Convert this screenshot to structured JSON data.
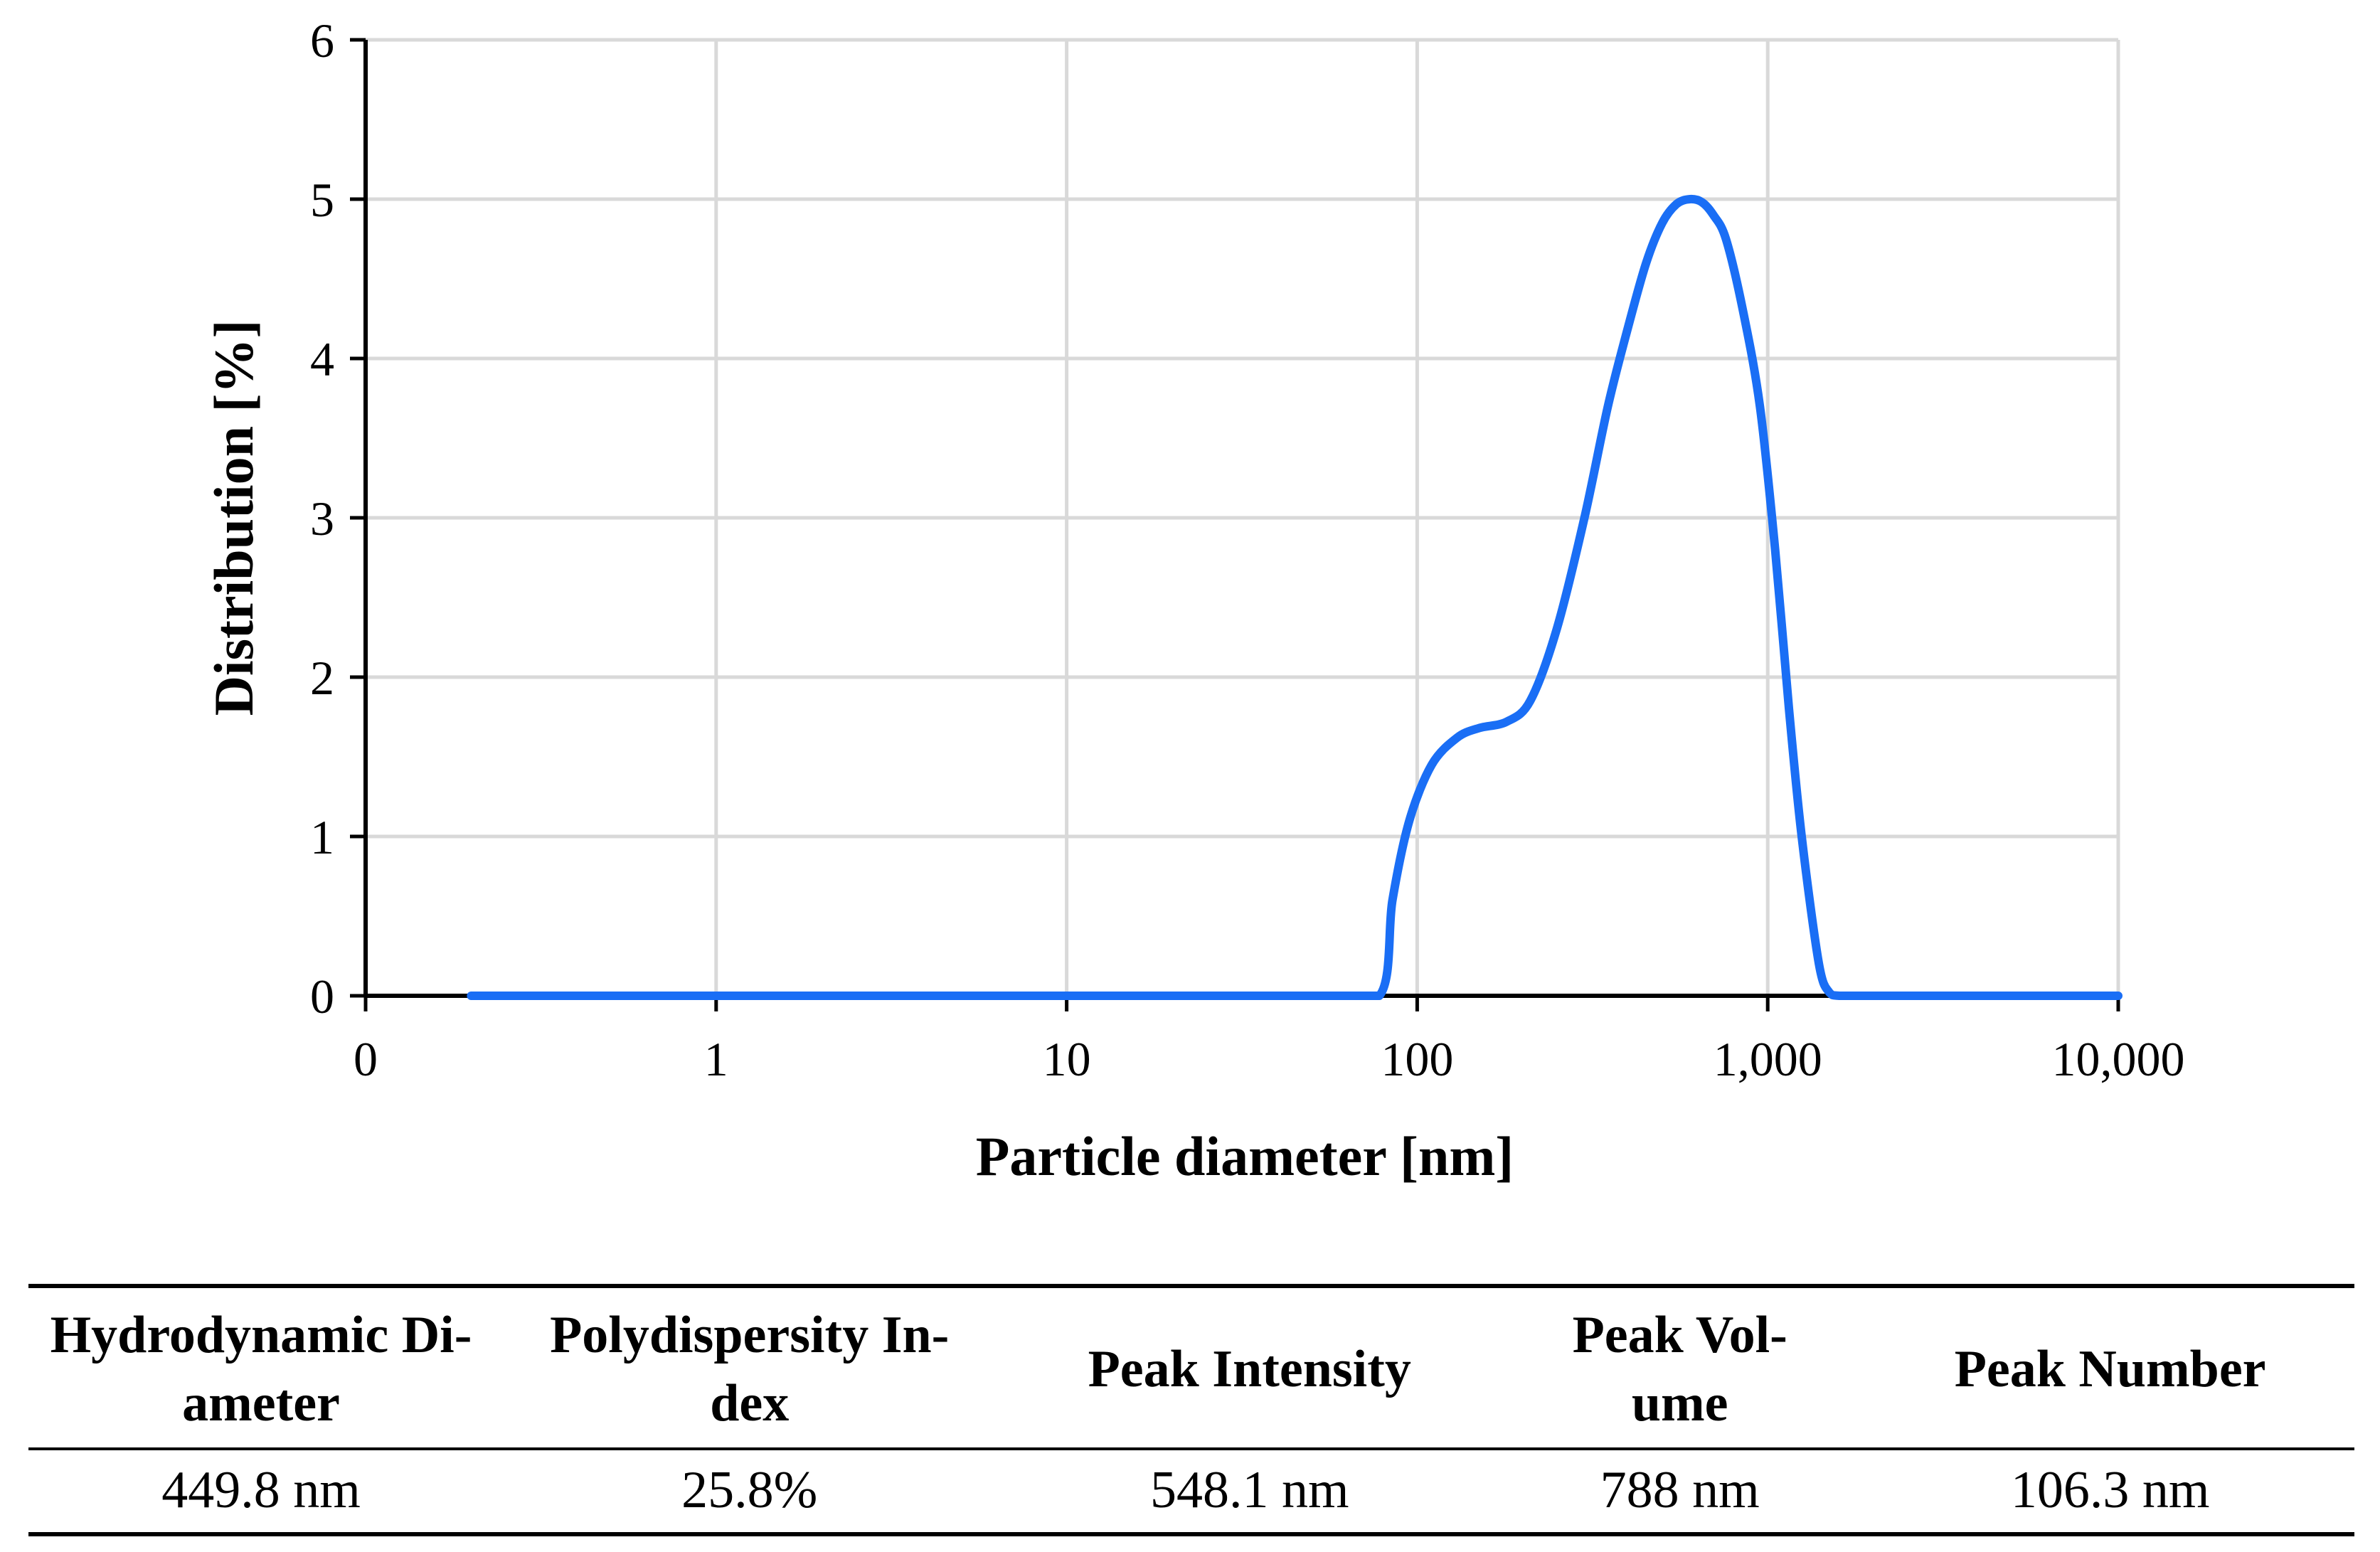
{
  "chart_data": {
    "type": "line",
    "xscale": "log",
    "xlabel": "Particle diameter [nm]",
    "ylabel": "Distribution [%]",
    "xticks": [
      0.1,
      1,
      10,
      100,
      1000,
      10000
    ],
    "xtick_labels": [
      "0",
      "1",
      "10",
      "100",
      "1,000",
      "10,000"
    ],
    "yticks": [
      0,
      1,
      2,
      3,
      4,
      5,
      6
    ],
    "ylim": [
      0,
      6
    ],
    "grid": true,
    "line_color": "#1a6ef5",
    "series": [
      {
        "name": "Distribution",
        "x": [
          0.2,
          1,
          10,
          50,
          78,
          85,
          95,
          110,
          130,
          150,
          180,
          210,
          250,
          300,
          350,
          400,
          450,
          500,
          550,
          600,
          650,
          700,
          760,
          850,
          950,
          1050,
          1150,
          1250,
          1400,
          1500,
          1600,
          2000,
          5000,
          10000
        ],
        "y": [
          0,
          0,
          0,
          0,
          0,
          0.6,
          1.1,
          1.45,
          1.62,
          1.68,
          1.72,
          1.85,
          2.3,
          3.0,
          3.7,
          4.2,
          4.6,
          4.85,
          4.97,
          5.0,
          4.98,
          4.9,
          4.75,
          4.3,
          3.7,
          2.8,
          1.8,
          1.0,
          0.2,
          0.02,
          0,
          0,
          0,
          0
        ]
      }
    ]
  },
  "table": {
    "headers": [
      [
        "Hydrodynamic Di-",
        "ameter"
      ],
      [
        "Polydispersity In-",
        "dex"
      ],
      [
        "Peak Intensity"
      ],
      [
        "Peak Vol-",
        "ume"
      ],
      [
        "Peak Number"
      ]
    ],
    "values": [
      "449.8 nm",
      "25.8%",
      "548.1 nm",
      "788 nm",
      "106.3 nm"
    ]
  }
}
